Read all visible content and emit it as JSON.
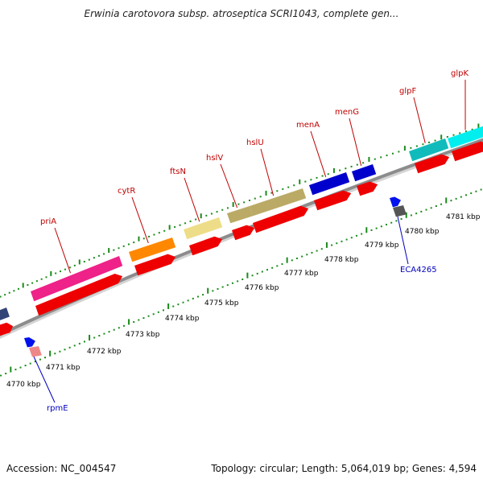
{
  "title": "Erwinia carotovora subsp. atroseptica SCRI1043, complete gen...",
  "accession": "Accession: NC_004547",
  "topology": "Topology: circular; Length: 5,064,019 bp; Genes: 4,594",
  "colors": {
    "backbone": "#8c8c8c",
    "tick": "#1a8a1a",
    "cds": "#ee0000",
    "top_label": "#c00000",
    "bottom_label": "#0000c0"
  },
  "scale_labels": [
    "4770 kbp",
    "4771 kbp",
    "4772 kbp",
    "4773 kbp",
    "4774 kbp",
    "4775 kbp",
    "4776 kbp",
    "4777 kbp",
    "4778 kbp",
    "4779 kbp",
    "4780 kbp",
    "4781 kbp"
  ],
  "top_genes": [
    {
      "name": "priA",
      "color": "#ee2288"
    },
    {
      "name": "cytR",
      "color": "#ff8800"
    },
    {
      "name": "ftsN",
      "color": "#eedd88"
    },
    {
      "name": "hslV",
      "color": "#bbaa66"
    },
    {
      "name": "hslU",
      "color": "#bbaa66"
    },
    {
      "name": "menA",
      "color": "#0000cc"
    },
    {
      "name": "menG",
      "color": "#0000cc"
    },
    {
      "name": "glpF",
      "color": "#11bbbb"
    },
    {
      "name": "glpK",
      "color": "#00eeee"
    }
  ],
  "bottom_genes": [
    {
      "name": "rpmE",
      "color": "#ee8888"
    },
    {
      "name": "ECA4265",
      "color": "#555555"
    }
  ]
}
